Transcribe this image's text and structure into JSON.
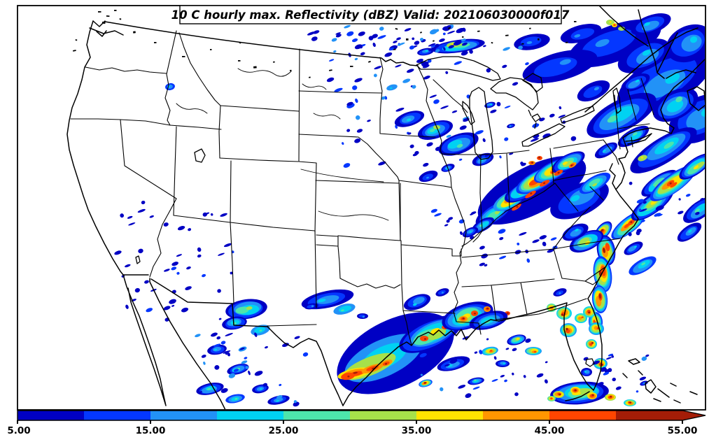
{
  "title": "10 C hourly max. Reflectivity (dBZ) Valid: 202106030000f017",
  "colorbar": {
    "tick_labels": [
      "5.00",
      "15.00",
      "25.00",
      "35.00",
      "45.00",
      "55.00"
    ],
    "levels": [
      5,
      10,
      15,
      20,
      25,
      30,
      35,
      40,
      45,
      50,
      55
    ],
    "colors": [
      "#0000C4",
      "#0437FF",
      "#2292F7",
      "#00D2F2",
      "#4DE5AC",
      "#A6E14A",
      "#FFE400",
      "#FF9600",
      "#FF4500",
      "#A41D07"
    ],
    "extend_color": "#A41D07"
  },
  "chart_data": {
    "type": "heatmap",
    "title": "10 C hourly max. Reflectivity (dBZ) Valid: 202106030000f017",
    "units": "dBZ",
    "colorbar_tick_labels": [
      "5.00",
      "15.00",
      "25.00",
      "35.00",
      "45.00",
      "55.00"
    ],
    "scale_levels": [
      5,
      10,
      15,
      20,
      25,
      30,
      35,
      40,
      45,
      50,
      55
    ],
    "scale_colors": [
      "#0000C4",
      "#0437FF",
      "#2292F7",
      "#00D2F2",
      "#4DE5AC",
      "#A6E14A",
      "#FFE400",
      "#FF9600",
      "#FF4500",
      "#A41D07"
    ],
    "extend": "max",
    "legend_position": "bottom",
    "regions": [
      {
        "area": "New England / Northeast US and offshore Atlantic",
        "intensity_dbz": "10-35 widespread stratiform with embedded 35-40"
      },
      {
        "area": "Ohio Valley (KY/OH/WV/PA line)",
        "intensity_dbz": "10-55+, convective line with >50 dBZ cores"
      },
      {
        "area": "Carolinas coast and offshore streaks",
        "intensity_dbz": "20-55+, strong convective line"
      },
      {
        "area": "Georgia / Florida peninsula and Florida Straits",
        "intensity_dbz": "scattered cells 20-55+"
      },
      {
        "area": "Texas Gulf Coast into Louisiana/Mississippi",
        "intensity_dbz": "squall cluster 10-55+"
      },
      {
        "area": "Upper Midwest (MN/WI/Lake Superior)",
        "intensity_dbz": "scattered 10-35"
      },
      {
        "area": "Southwest US (AZ/NM) and northern Mexico",
        "intensity_dbz": "isolated 10-30"
      },
      {
        "area": "Central Texas",
        "intensity_dbz": "patches 15-25"
      }
    ]
  },
  "radar": {
    "clusters": [
      [
        878,
        62,
        70,
        26,
        -20,
        0,
        2
      ],
      [
        830,
        48,
        30,
        12,
        -15,
        0,
        2
      ],
      [
        950,
        115,
        75,
        34,
        -28,
        0,
        3
      ],
      [
        1000,
        170,
        48,
        30,
        -30,
        0,
        3
      ],
      [
        888,
        165,
        55,
        22,
        -28,
        0,
        4
      ],
      [
        948,
        215,
        55,
        18,
        -32,
        0,
        4
      ],
      [
        800,
        95,
        55,
        20,
        -15,
        0,
        2
      ],
      [
        908,
        118,
        22,
        10,
        -25,
        0,
        3
      ],
      [
        760,
        60,
        26,
        11,
        -10,
        0,
        2
      ],
      [
        985,
        62,
        35,
        25,
        -25,
        0,
        3
      ],
      [
        930,
        35,
        30,
        13,
        -20,
        0,
        3
      ],
      [
        872,
        32,
        6,
        4,
        0,
        5,
        6
      ],
      [
        888,
        41,
        5,
        3,
        0,
        5,
        5
      ],
      [
        878,
        36,
        4,
        3,
        0,
        6,
        8
      ],
      [
        918,
        226,
        7,
        4,
        -20,
        5,
        6
      ],
      [
        1000,
        300,
        28,
        12,
        -35,
        0,
        4
      ],
      [
        985,
        332,
        20,
        9,
        -35,
        0,
        3
      ],
      [
        942,
        262,
        30,
        11,
        -34,
        0,
        5
      ],
      [
        848,
        130,
        25,
        12,
        -25,
        0,
        2
      ],
      [
        920,
        80,
        40,
        20,
        -25,
        0,
        3
      ],
      [
        965,
        150,
        35,
        20,
        -28,
        0,
        4
      ],
      [
        905,
        195,
        25,
        10,
        -30,
        0,
        4
      ],
      [
        866,
        215,
        18,
        8,
        -30,
        0,
        3
      ],
      [
        760,
        272,
        85,
        34,
        -27,
        0,
        1
      ],
      [
        706,
        305,
        30,
        13,
        -32,
        0,
        5
      ],
      [
        728,
        286,
        26,
        11,
        -30,
        2,
        8
      ],
      [
        748,
        272,
        30,
        12,
        -28,
        0,
        6
      ],
      [
        768,
        258,
        34,
        13,
        -28,
        1,
        9
      ],
      [
        790,
        244,
        30,
        12,
        -28,
        1,
        8
      ],
      [
        812,
        232,
        26,
        11,
        -28,
        0,
        6
      ],
      [
        738,
        296,
        8,
        3,
        -35,
        8,
        9
      ],
      [
        758,
        278,
        9,
        3,
        -32,
        8,
        9
      ],
      [
        778,
        262,
        8,
        3,
        -30,
        8,
        9
      ],
      [
        798,
        247,
        7,
        3,
        -30,
        8,
        9
      ],
      [
        818,
        236,
        6,
        3,
        -30,
        7,
        9
      ],
      [
        690,
        322,
        18,
        8,
        -30,
        0,
        4
      ],
      [
        672,
        332,
        12,
        6,
        -25,
        0,
        3
      ],
      [
        760,
        233,
        5,
        3,
        0,
        7,
        9
      ],
      [
        771,
        226,
        4,
        3,
        0,
        8,
        9
      ],
      [
        828,
        286,
        45,
        22,
        -25,
        0,
        3
      ],
      [
        850,
        262,
        25,
        10,
        -30,
        1,
        5
      ],
      [
        862,
        330,
        16,
        9,
        -50,
        0,
        9
      ],
      [
        866,
        358,
        13,
        22,
        -10,
        0,
        9
      ],
      [
        861,
        392,
        13,
        26,
        -8,
        1,
        9
      ],
      [
        857,
        428,
        11,
        20,
        -5,
        1,
        9
      ],
      [
        851,
        460,
        10,
        14,
        -5,
        1,
        8
      ],
      [
        838,
        345,
        26,
        13,
        -25,
        0,
        6
      ],
      [
        822,
        332,
        20,
        10,
        -25,
        0,
        3
      ],
      [
        898,
        322,
        30,
        11,
        -38,
        1,
        8
      ],
      [
        902,
        318,
        6,
        3,
        -38,
        8,
        9
      ],
      [
        932,
        292,
        36,
        13,
        -36,
        0,
        6
      ],
      [
        962,
        262,
        40,
        13,
        -36,
        1,
        8
      ],
      [
        958,
        262,
        6,
        3,
        -36,
        8,
        9
      ],
      [
        994,
        238,
        28,
        11,
        -36,
        0,
        6
      ],
      [
        918,
        380,
        22,
        9,
        -30,
        1,
        4
      ],
      [
        905,
        355,
        15,
        7,
        -30,
        0,
        3
      ],
      [
        806,
        448,
        11,
        9,
        0,
        3,
        9
      ],
      [
        788,
        440,
        7,
        6,
        0,
        4,
        8
      ],
      [
        812,
        472,
        12,
        10,
        0,
        2,
        9
      ],
      [
        830,
        455,
        9,
        7,
        0,
        3,
        8
      ],
      [
        842,
        446,
        9,
        8,
        0,
        3,
        9
      ],
      [
        852,
        470,
        11,
        9,
        0,
        2,
        8
      ],
      [
        845,
        492,
        8,
        7,
        0,
        3,
        9
      ],
      [
        858,
        520,
        10,
        8,
        0,
        2,
        9
      ],
      [
        838,
        532,
        8,
        6,
        0,
        0,
        3
      ],
      [
        800,
        418,
        10,
        5,
        -20,
        0,
        2
      ],
      [
        828,
        562,
        42,
        16,
        -5,
        0,
        6
      ],
      [
        798,
        564,
        8,
        5,
        0,
        5,
        9
      ],
      [
        822,
        558,
        7,
        5,
        0,
        6,
        9
      ],
      [
        846,
        566,
        7,
        5,
        0,
        6,
        9
      ],
      [
        872,
        568,
        8,
        5,
        0,
        5,
        9
      ],
      [
        788,
        570,
        6,
        4,
        0,
        4,
        8
      ],
      [
        900,
        576,
        9,
        5,
        0,
        3,
        9
      ],
      [
        920,
        548,
        6,
        3,
        -20,
        0,
        2
      ],
      [
        565,
        505,
        90,
        48,
        -26,
        0,
        1
      ],
      [
        548,
        512,
        60,
        26,
        -25,
        2,
        4
      ],
      [
        528,
        524,
        40,
        13,
        -22,
        5,
        6
      ],
      [
        506,
        534,
        24,
        7,
        -12,
        6,
        9
      ],
      [
        532,
        527,
        16,
        5,
        -18,
        7,
        9
      ],
      [
        552,
        519,
        9,
        4,
        -20,
        7,
        9
      ],
      [
        497,
        538,
        10,
        5,
        -10,
        8,
        9
      ],
      [
        615,
        478,
        48,
        20,
        -24,
        0,
        6
      ],
      [
        606,
        484,
        6,
        4,
        0,
        8,
        9
      ],
      [
        636,
        468,
        5,
        3,
        0,
        8,
        9
      ],
      [
        668,
        452,
        38,
        18,
        -18,
        0,
        6
      ],
      [
        662,
        456,
        6,
        4,
        0,
        7,
        9
      ],
      [
        678,
        448,
        5,
        4,
        0,
        8,
        9
      ],
      [
        696,
        442,
        5,
        4,
        0,
        7,
        9
      ],
      [
        712,
        452,
        5,
        4,
        0,
        7,
        9
      ],
      [
        725,
        448,
        4,
        3,
        0,
        8,
        9
      ],
      [
        698,
        458,
        28,
        12,
        -15,
        0,
        4
      ],
      [
        596,
        432,
        20,
        10,
        -20,
        0,
        3
      ],
      [
        632,
        418,
        10,
        5,
        -20,
        0,
        2
      ],
      [
        648,
        520,
        24,
        9,
        -15,
        0,
        3
      ],
      [
        700,
        502,
        12,
        6,
        -10,
        2,
        8
      ],
      [
        738,
        486,
        14,
        7,
        -15,
        0,
        6
      ],
      [
        762,
        502,
        12,
        6,
        0,
        2,
        8
      ],
      [
        718,
        520,
        10,
        5,
        0,
        0,
        3
      ],
      [
        680,
        545,
        12,
        5,
        -10,
        0,
        4
      ],
      [
        608,
        548,
        10,
        5,
        -15,
        1,
        9
      ],
      [
        468,
        428,
        38,
        12,
        -12,
        0,
        3
      ],
      [
        492,
        442,
        16,
        7,
        -15,
        2,
        4
      ],
      [
        445,
        438,
        10,
        4,
        -10,
        0,
        2
      ],
      [
        518,
        452,
        8,
        4,
        0,
        0,
        2
      ],
      [
        352,
        442,
        30,
        14,
        -8,
        0,
        5
      ],
      [
        335,
        462,
        18,
        9,
        -10,
        0,
        4
      ],
      [
        372,
        472,
        14,
        7,
        -15,
        2,
        4
      ],
      [
        310,
        500,
        14,
        7,
        -10,
        0,
        3
      ],
      [
        340,
        528,
        16,
        7,
        -15,
        0,
        4
      ],
      [
        300,
        556,
        20,
        8,
        -12,
        0,
        4
      ],
      [
        336,
        570,
        14,
        6,
        -12,
        1,
        4
      ],
      [
        372,
        556,
        12,
        6,
        -12,
        0,
        3
      ],
      [
        398,
        572,
        16,
        6,
        -12,
        0,
        3
      ],
      [
        585,
        170,
        22,
        10,
        -18,
        0,
        3
      ],
      [
        622,
        186,
        26,
        12,
        -18,
        0,
        4
      ],
      [
        624,
        182,
        5,
        3,
        0,
        5,
        5
      ],
      [
        655,
        206,
        30,
        14,
        -20,
        0,
        4
      ],
      [
        690,
        228,
        16,
        8,
        -20,
        0,
        3
      ],
      [
        612,
        252,
        14,
        7,
        -20,
        0,
        2
      ],
      [
        640,
        240,
        10,
        5,
        -20,
        0,
        3
      ],
      [
        655,
        66,
        38,
        9,
        -8,
        0,
        5
      ],
      [
        648,
        64,
        10,
        4,
        -8,
        5,
        6
      ],
      [
        608,
        74,
        12,
        5,
        -10,
        0,
        3
      ],
      [
        560,
        125,
        8,
        4,
        -15,
        2,
        3
      ],
      [
        700,
        150,
        8,
        4,
        -15,
        0,
        3
      ],
      [
        730,
        180,
        6,
        3,
        -15,
        0,
        2
      ],
      [
        243,
        124,
        7,
        5,
        -10,
        1,
        3
      ]
    ],
    "speck_fields": [
      [
        470,
        42,
        300,
        195,
        80,
        2,
        11
      ],
      [
        168,
        288,
        165,
        170,
        45,
        1,
        22
      ],
      [
        430,
        28,
        255,
        48,
        30,
        2,
        33
      ],
      [
        688,
        330,
        105,
        58,
        18,
        1,
        44
      ],
      [
        598,
        478,
        185,
        88,
        26,
        2,
        55
      ],
      [
        282,
        478,
        165,
        102,
        34,
        2,
        66
      ],
      [
        832,
        505,
        95,
        62,
        16,
        2,
        77
      ],
      [
        900,
        240,
        115,
        95,
        20,
        1,
        88
      ],
      [
        535,
        38,
        130,
        70,
        24,
        2,
        99
      ],
      [
        760,
        150,
        60,
        60,
        10,
        1,
        111
      ],
      [
        610,
        300,
        70,
        40,
        10,
        1,
        122
      ]
    ]
  },
  "map_specks": [
    [
      140,
      16
    ],
    [
      152,
      22
    ],
    [
      163,
      14
    ],
    [
      171,
      26
    ],
    [
      146,
      31
    ],
    [
      565,
      40
    ],
    [
      580,
      55
    ],
    [
      600,
      46
    ],
    [
      618,
      58
    ],
    [
      640,
      40
    ],
    [
      660,
      52
    ],
    [
      682,
      44
    ],
    [
      702,
      60
    ],
    [
      722,
      50
    ],
    [
      745,
      62
    ],
    [
      768,
      55
    ],
    [
      640,
      20
    ],
    [
      612,
      28
    ],
    [
      590,
      18
    ],
    [
      562,
      70
    ],
    [
      692,
      20
    ],
    [
      712,
      30
    ],
    [
      736,
      25
    ],
    [
      340,
      86
    ],
    [
      362,
      95
    ],
    [
      390,
      88
    ],
    [
      414,
      100
    ],
    [
      441,
      110
    ],
    [
      470,
      100
    ],
    [
      500,
      94
    ],
    [
      526,
      88
    ],
    [
      820,
      30
    ],
    [
      808,
      60
    ],
    [
      342,
      60
    ],
    [
      300,
      70
    ],
    [
      260,
      80
    ],
    [
      220,
      60
    ],
    [
      190,
      45
    ],
    [
      108,
      56
    ],
    [
      104,
      72
    ],
    [
      756,
      40
    ],
    [
      780,
      30
    ]
  ]
}
